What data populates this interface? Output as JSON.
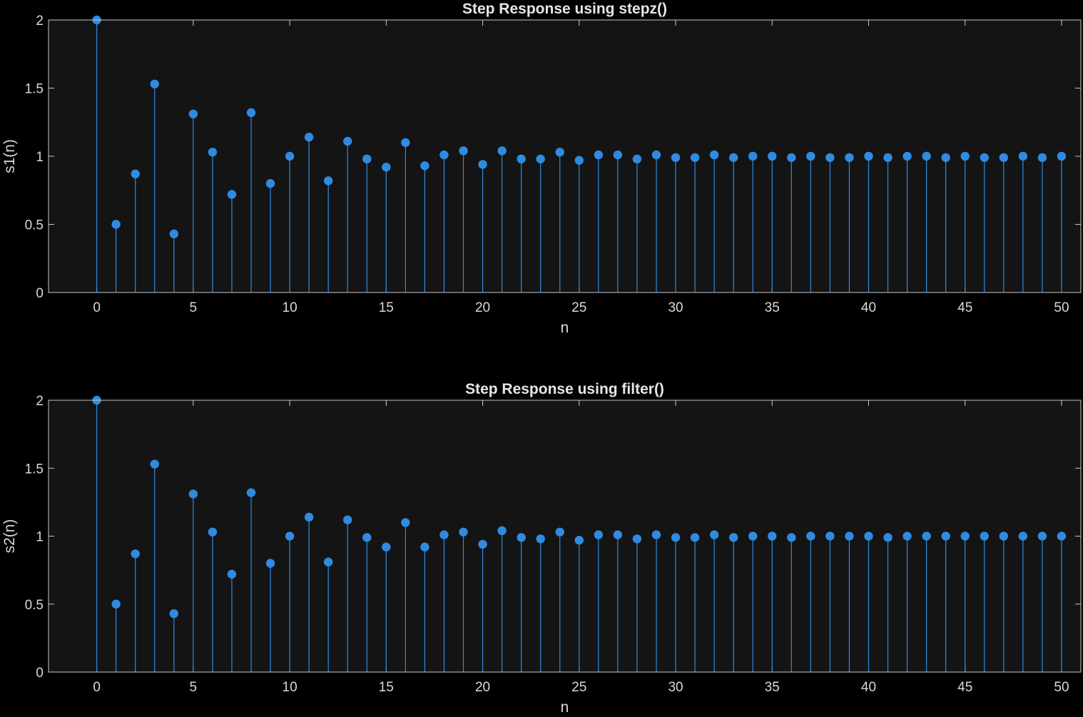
{
  "colors": {
    "background": "#000000",
    "axes_background": "#141414",
    "axes_edge": "#c9c9c9",
    "text": "#d9d9d9",
    "series": "#2f8be0"
  },
  "chart_data": [
    {
      "type": "stem",
      "title": "Step Response using stepz()",
      "xlabel": "n",
      "ylabel": "s1(n)",
      "xlim": [
        -2.5,
        51
      ],
      "ylim": [
        0,
        2
      ],
      "xticks": [
        0,
        5,
        10,
        15,
        20,
        25,
        30,
        35,
        40,
        45,
        50
      ],
      "yticks": [
        0,
        0.5,
        1,
        1.5,
        2
      ],
      "ytick_labels": [
        "0",
        "0.5",
        "1",
        "1.5",
        "2"
      ],
      "grid": false,
      "x": [
        0,
        1,
        2,
        3,
        4,
        5,
        6,
        7,
        8,
        9,
        10,
        11,
        12,
        13,
        14,
        15,
        16,
        17,
        18,
        19,
        20,
        21,
        22,
        23,
        24,
        25,
        26,
        27,
        28,
        29,
        30,
        31,
        32,
        33,
        34,
        35,
        36,
        37,
        38,
        39,
        40,
        41,
        42,
        43,
        44,
        45,
        46,
        47,
        48,
        49,
        50
      ],
      "values": [
        2.0,
        0.5,
        0.87,
        1.53,
        0.43,
        1.31,
        1.03,
        0.72,
        1.32,
        0.8,
        1.0,
        1.14,
        0.82,
        1.11,
        0.98,
        0.92,
        1.1,
        0.93,
        1.01,
        1.04,
        0.94,
        1.04,
        0.98,
        0.98,
        1.03,
        0.97,
        1.01,
        1.01,
        0.98,
        1.01,
        0.99,
        0.99,
        1.01,
        0.99,
        1.0,
        1.0,
        0.99,
        1.0,
        0.99,
        0.99,
        1.0,
        0.99,
        1.0,
        1.0,
        0.99,
        1.0,
        0.99,
        0.99,
        1.0,
        0.99,
        1.0
      ]
    },
    {
      "type": "stem",
      "title": "Step Response using filter()",
      "xlabel": "n",
      "ylabel": "s2(n)",
      "xlim": [
        -2.5,
        51
      ],
      "ylim": [
        0,
        2
      ],
      "xticks": [
        0,
        5,
        10,
        15,
        20,
        25,
        30,
        35,
        40,
        45,
        50
      ],
      "yticks": [
        0,
        0.5,
        1,
        1.5,
        2
      ],
      "ytick_labels": [
        "0",
        "0.5",
        "1",
        "1.5",
        "2"
      ],
      "grid": false,
      "x": [
        0,
        1,
        2,
        3,
        4,
        5,
        6,
        7,
        8,
        9,
        10,
        11,
        12,
        13,
        14,
        15,
        16,
        17,
        18,
        19,
        20,
        21,
        22,
        23,
        24,
        25,
        26,
        27,
        28,
        29,
        30,
        31,
        32,
        33,
        34,
        35,
        36,
        37,
        38,
        39,
        40,
        41,
        42,
        43,
        44,
        45,
        46,
        47,
        48,
        49,
        50
      ],
      "values": [
        2.0,
        0.5,
        0.87,
        1.53,
        0.43,
        1.31,
        1.03,
        0.72,
        1.32,
        0.8,
        1.0,
        1.14,
        0.81,
        1.12,
        0.99,
        0.92,
        1.1,
        0.92,
        1.01,
        1.03,
        0.94,
        1.04,
        0.99,
        0.98,
        1.03,
        0.97,
        1.01,
        1.01,
        0.98,
        1.01,
        0.99,
        0.99,
        1.01,
        0.99,
        1.0,
        1.0,
        0.99,
        1.0,
        1.0,
        1.0,
        1.0,
        0.99,
        1.0,
        1.0,
        1.0,
        1.0,
        1.0,
        1.0,
        1.0,
        1.0,
        1.0
      ]
    }
  ]
}
